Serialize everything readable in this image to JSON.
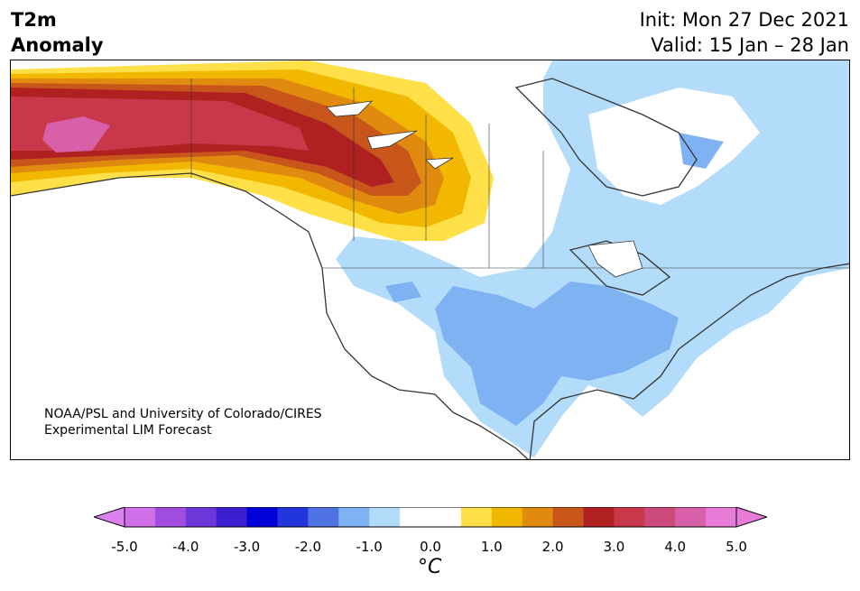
{
  "header": {
    "title_line1": "T2m",
    "title_line2": "Anomaly",
    "init": "Init: Mon 27 Dec 2021",
    "valid": "Valid: 15 Jan – 28 Jan"
  },
  "credit": {
    "line1": "NOAA/PSL and University of Colorado/CIRES",
    "line2": "Experimental LIM Forecast"
  },
  "colorbar": {
    "unit_label": "°C",
    "ticks": [
      "-5.0",
      "-4.0",
      "-3.0",
      "-2.0",
      "-1.0",
      "0.0",
      "1.0",
      "2.0",
      "3.0",
      "4.0",
      "5.0"
    ],
    "colors": [
      "#cf70e8",
      "#a14ee0",
      "#6b37d9",
      "#3b1fd1",
      "#0000d8",
      "#2236dc",
      "#4f72e4",
      "#7fb2f2",
      "#b3dcfa",
      "#ffffff",
      "#ffffff",
      "#ffe048",
      "#f2b800",
      "#e08a10",
      "#c8561a",
      "#b02020",
      "#c8384a",
      "#cc4a7a",
      "#d860a8",
      "#e87ad8"
    ],
    "under_color": "#dd80f0",
    "over_color": "#e87ad8"
  },
  "map": {
    "anomaly_colors": {
      "warm_1": "#ffe048",
      "warm_2": "#f2b800",
      "warm_3": "#e08a10",
      "warm_4": "#c8561a",
      "warm_5": "#b02020",
      "warm_6": "#c8384a",
      "warm_7": "#d860a8",
      "cool_1": "#b3dcfa",
      "cool_2": "#7fb2f2"
    }
  }
}
